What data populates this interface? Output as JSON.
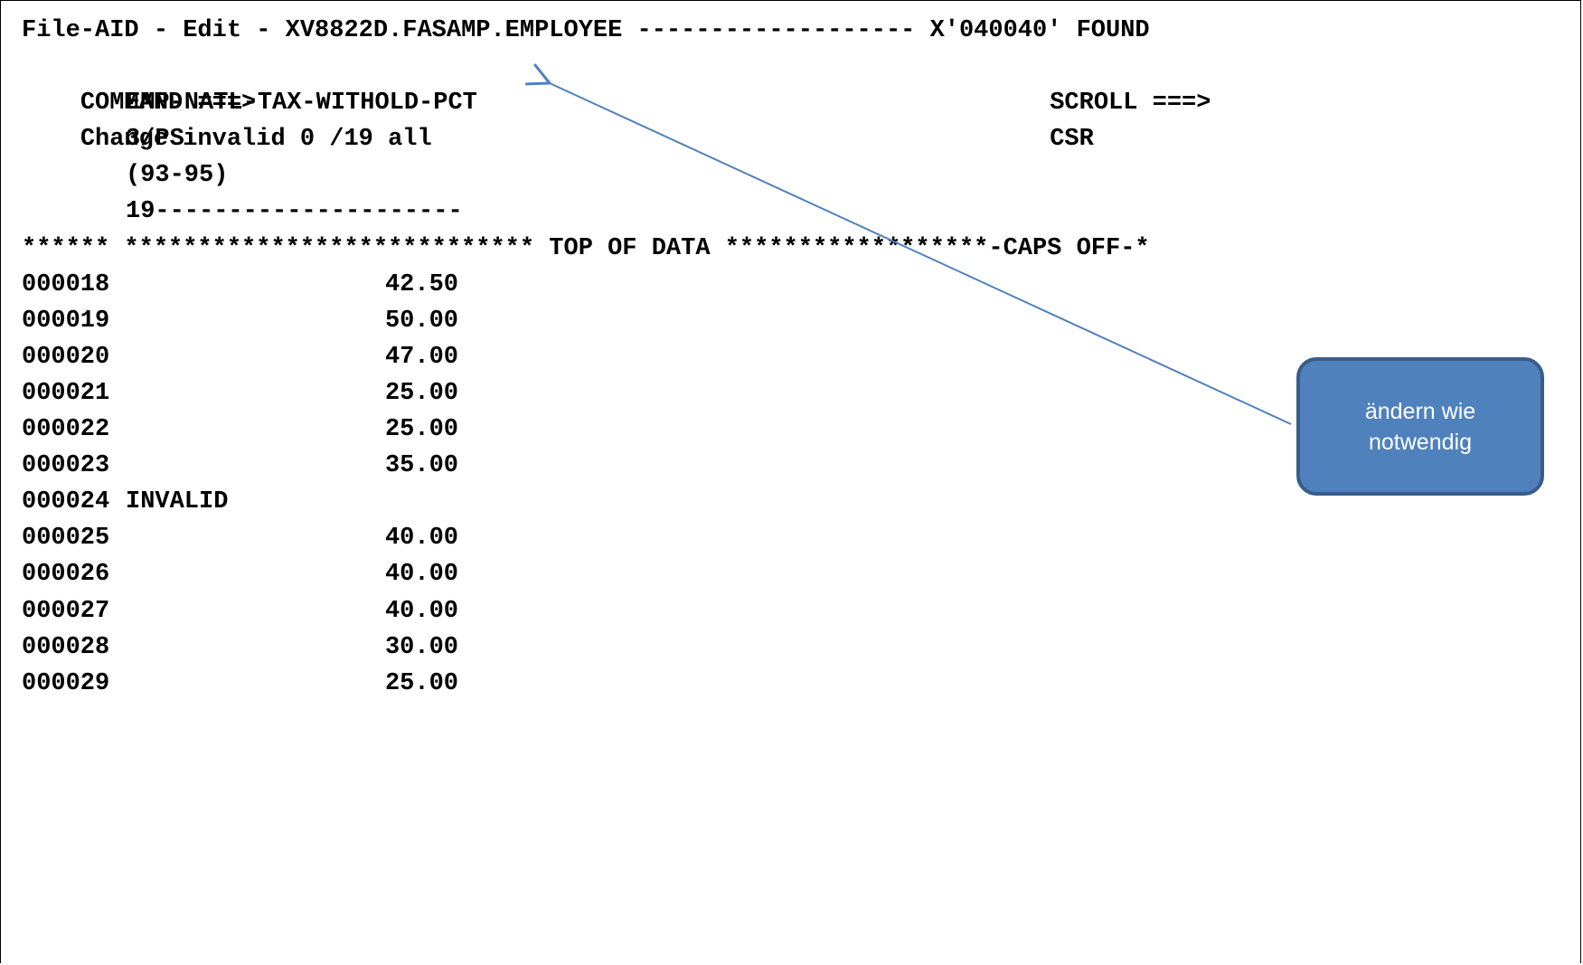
{
  "header": {
    "title_line": "File-AID - Edit - XV8822D.FASAMP.EMPLOYEE ------------------- X'040040' FOUND",
    "command_label": "COMMAND ===>",
    "command_value": "Change invalid 0 /19 all",
    "scroll_label": "SCROLL ===>",
    "scroll_value": "CSR"
  },
  "field_heading": {
    "name": "EMP-NATL-TAX-WITHOLD-PCT",
    "format": "3/PS",
    "position": "(93-95)",
    "ruler": "19---------------------"
  },
  "top_of_data": "****** **************************** TOP OF DATA ******************-CAPS OFF-*",
  "records": [
    {
      "line": "000018",
      "value": "42.50"
    },
    {
      "line": "000019",
      "value": "50.00"
    },
    {
      "line": "000020",
      "value": "47.00"
    },
    {
      "line": "000021",
      "value": "25.00"
    },
    {
      "line": "000022",
      "value": "25.00"
    },
    {
      "line": "000023",
      "value": "35.00"
    },
    {
      "line": "000024",
      "value": "INVALID"
    },
    {
      "line": "000025",
      "value": "40.00"
    },
    {
      "line": "000026",
      "value": "40.00"
    },
    {
      "line": "000027",
      "value": "40.00"
    },
    {
      "line": "000028",
      "value": "30.00"
    },
    {
      "line": "000029",
      "value": "25.00"
    }
  ],
  "callout": {
    "line1": "ändern wie",
    "line2": "notwendig",
    "fill_color": "#4f81bd",
    "arrow_color": "#4f81bd"
  }
}
